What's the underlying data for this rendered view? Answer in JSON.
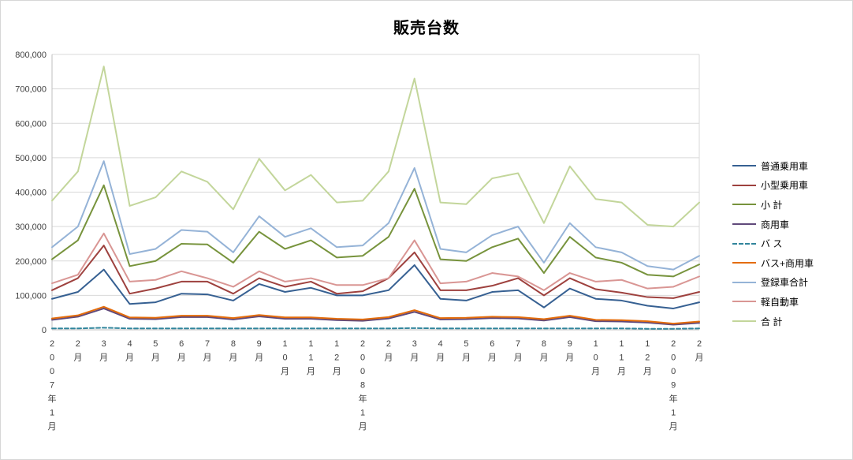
{
  "chart_data": {
    "type": "line",
    "title": "販売台数",
    "xlabel": "",
    "ylabel": "",
    "ylim": [
      0,
      800000
    ],
    "grid": true,
    "legend_position": "right",
    "y_ticks": [
      "0",
      "100,000",
      "200,000",
      "300,000",
      "400,000",
      "500,000",
      "600,000",
      "700,000",
      "800,000"
    ],
    "categories": [
      "2007年1月",
      "2月",
      "3月",
      "4月",
      "5月",
      "6月",
      "7月",
      "8月",
      "9月",
      "10月",
      "11月",
      "12月",
      "2008年1月",
      "2月",
      "3月",
      "4月",
      "5月",
      "6月",
      "7月",
      "8月",
      "9月",
      "10月",
      "11月",
      "12月",
      "2009年1月",
      "2月"
    ],
    "series": [
      {
        "key": "futsu",
        "name": "普通乗用車",
        "color": "#366092",
        "dash": false,
        "values": [
          90000,
          110000,
          175000,
          75000,
          80000,
          105000,
          103000,
          85000,
          133000,
          110000,
          122000,
          100000,
          100000,
          115000,
          188000,
          90000,
          85000,
          110000,
          115000,
          65000,
          120000,
          90000,
          85000,
          70000,
          62000,
          80000
        ]
      },
      {
        "key": "kogata",
        "name": "小型乗用車",
        "color": "#9E413E",
        "dash": false,
        "values": [
          115000,
          150000,
          245000,
          105000,
          120000,
          140000,
          140000,
          105000,
          150000,
          125000,
          140000,
          105000,
          112000,
          150000,
          225000,
          115000,
          115000,
          128000,
          150000,
          100000,
          150000,
          118000,
          108000,
          95000,
          92000,
          110000
        ]
      },
      {
        "key": "shokei",
        "name": "小  計",
        "color": "#77933C",
        "dash": false,
        "values": [
          205000,
          260000,
          420000,
          185000,
          200000,
          250000,
          248000,
          195000,
          285000,
          235000,
          260000,
          210000,
          215000,
          270000,
          410000,
          205000,
          200000,
          240000,
          265000,
          165000,
          270000,
          210000,
          195000,
          160000,
          155000,
          190000
        ]
      },
      {
        "key": "shoyosha",
        "name": "商用車",
        "color": "#60497B",
        "dash": false,
        "values": [
          29000,
          38000,
          62000,
          32000,
          31000,
          37000,
          37000,
          30000,
          39000,
          32000,
          32000,
          28000,
          26000,
          33000,
          52000,
          30000,
          31000,
          34000,
          33000,
          27000,
          37000,
          25000,
          24000,
          21000,
          15000,
          20000
        ]
      },
      {
        "key": "bus",
        "name": "バ ス",
        "color": "#31859C",
        "dash": true,
        "values": [
          4000,
          4000,
          6000,
          4000,
          4000,
          4000,
          4000,
          4000,
          4000,
          4000,
          4000,
          4000,
          4000,
          4000,
          5000,
          4000,
          4000,
          4000,
          4000,
          4000,
          4000,
          4000,
          4000,
          3000,
          3000,
          4000
        ]
      },
      {
        "key": "bus-shoyosha",
        "name": "バス+商用車",
        "color": "#E46C0A",
        "dash": false,
        "values": [
          33000,
          42000,
          67000,
          36000,
          35000,
          41000,
          41000,
          34000,
          43000,
          36000,
          36000,
          32000,
          30000,
          37000,
          57000,
          34000,
          35000,
          38000,
          37000,
          31000,
          41000,
          29000,
          28000,
          25000,
          18000,
          24000
        ]
      },
      {
        "key": "toroku-gokei",
        "name": "登録車合計",
        "color": "#95B3D7",
        "dash": false,
        "values": [
          240000,
          300000,
          490000,
          220000,
          235000,
          290000,
          285000,
          225000,
          330000,
          270000,
          295000,
          240000,
          245000,
          310000,
          470000,
          235000,
          225000,
          275000,
          300000,
          195000,
          310000,
          240000,
          225000,
          185000,
          175000,
          215000
        ]
      },
      {
        "key": "kei",
        "name": "軽自動車",
        "color": "#D99694",
        "dash": false,
        "values": [
          135000,
          160000,
          280000,
          140000,
          145000,
          170000,
          150000,
          125000,
          170000,
          140000,
          150000,
          130000,
          130000,
          150000,
          260000,
          135000,
          140000,
          165000,
          155000,
          115000,
          165000,
          140000,
          145000,
          120000,
          125000,
          155000
        ]
      },
      {
        "key": "gokei",
        "name": "合 計",
        "color": "#C3D69B",
        "dash": false,
        "values": [
          375000,
          460000,
          765000,
          360000,
          385000,
          460000,
          430000,
          350000,
          497000,
          405000,
          450000,
          370000,
          375000,
          460000,
          730000,
          370000,
          365000,
          440000,
          455000,
          310000,
          475000,
          380000,
          370000,
          305000,
          300000,
          370000
        ]
      }
    ]
  }
}
